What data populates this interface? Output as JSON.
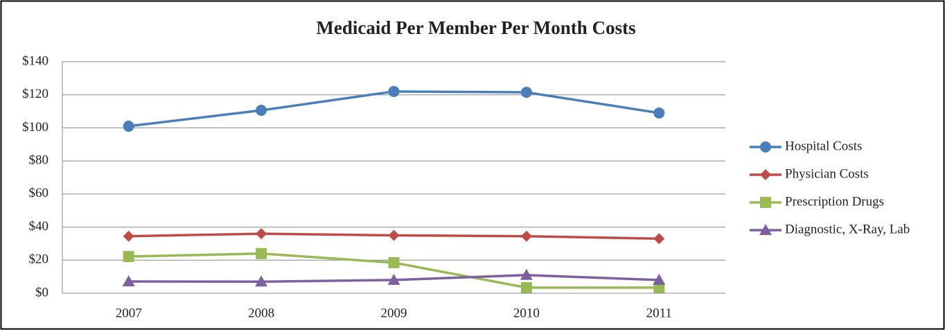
{
  "chart_data": {
    "type": "line",
    "title": "Medicaid Per Member Per Month Costs",
    "categories": [
      "2007",
      "2008",
      "2009",
      "2010",
      "2011"
    ],
    "series": [
      {
        "name": "Hospital Costs",
        "color": "#4a7ebb",
        "marker": "circle",
        "values": [
          101,
          110.6,
          122,
          121.5,
          109
        ]
      },
      {
        "name": "Physician Costs",
        "color": "#be4b48",
        "marker": "diamond",
        "values": [
          34.5,
          36,
          35,
          34.5,
          33
        ]
      },
      {
        "name": "Prescription Drugs",
        "color": "#98b954",
        "marker": "square",
        "values": [
          22.2,
          24,
          18.5,
          3.4,
          3.4
        ]
      },
      {
        "name": "Diagnostic, X-Ray, Lab",
        "color": "#7d60a0",
        "marker": "triangle",
        "values": [
          7.1,
          7,
          8,
          11,
          8
        ]
      }
    ],
    "ylim": [
      0,
      140
    ],
    "yticks": [
      {
        "value": 0,
        "label": "$0"
      },
      {
        "value": 20,
        "label": "$20"
      },
      {
        "value": 40,
        "label": "$40"
      },
      {
        "value": 60,
        "label": "$60"
      },
      {
        "value": 80,
        "label": "$80"
      },
      {
        "value": 100,
        "label": "$100"
      },
      {
        "value": 120,
        "label": "$120"
      },
      {
        "value": 140,
        "label": "$140"
      }
    ],
    "grid": true,
    "legend": "right"
  }
}
